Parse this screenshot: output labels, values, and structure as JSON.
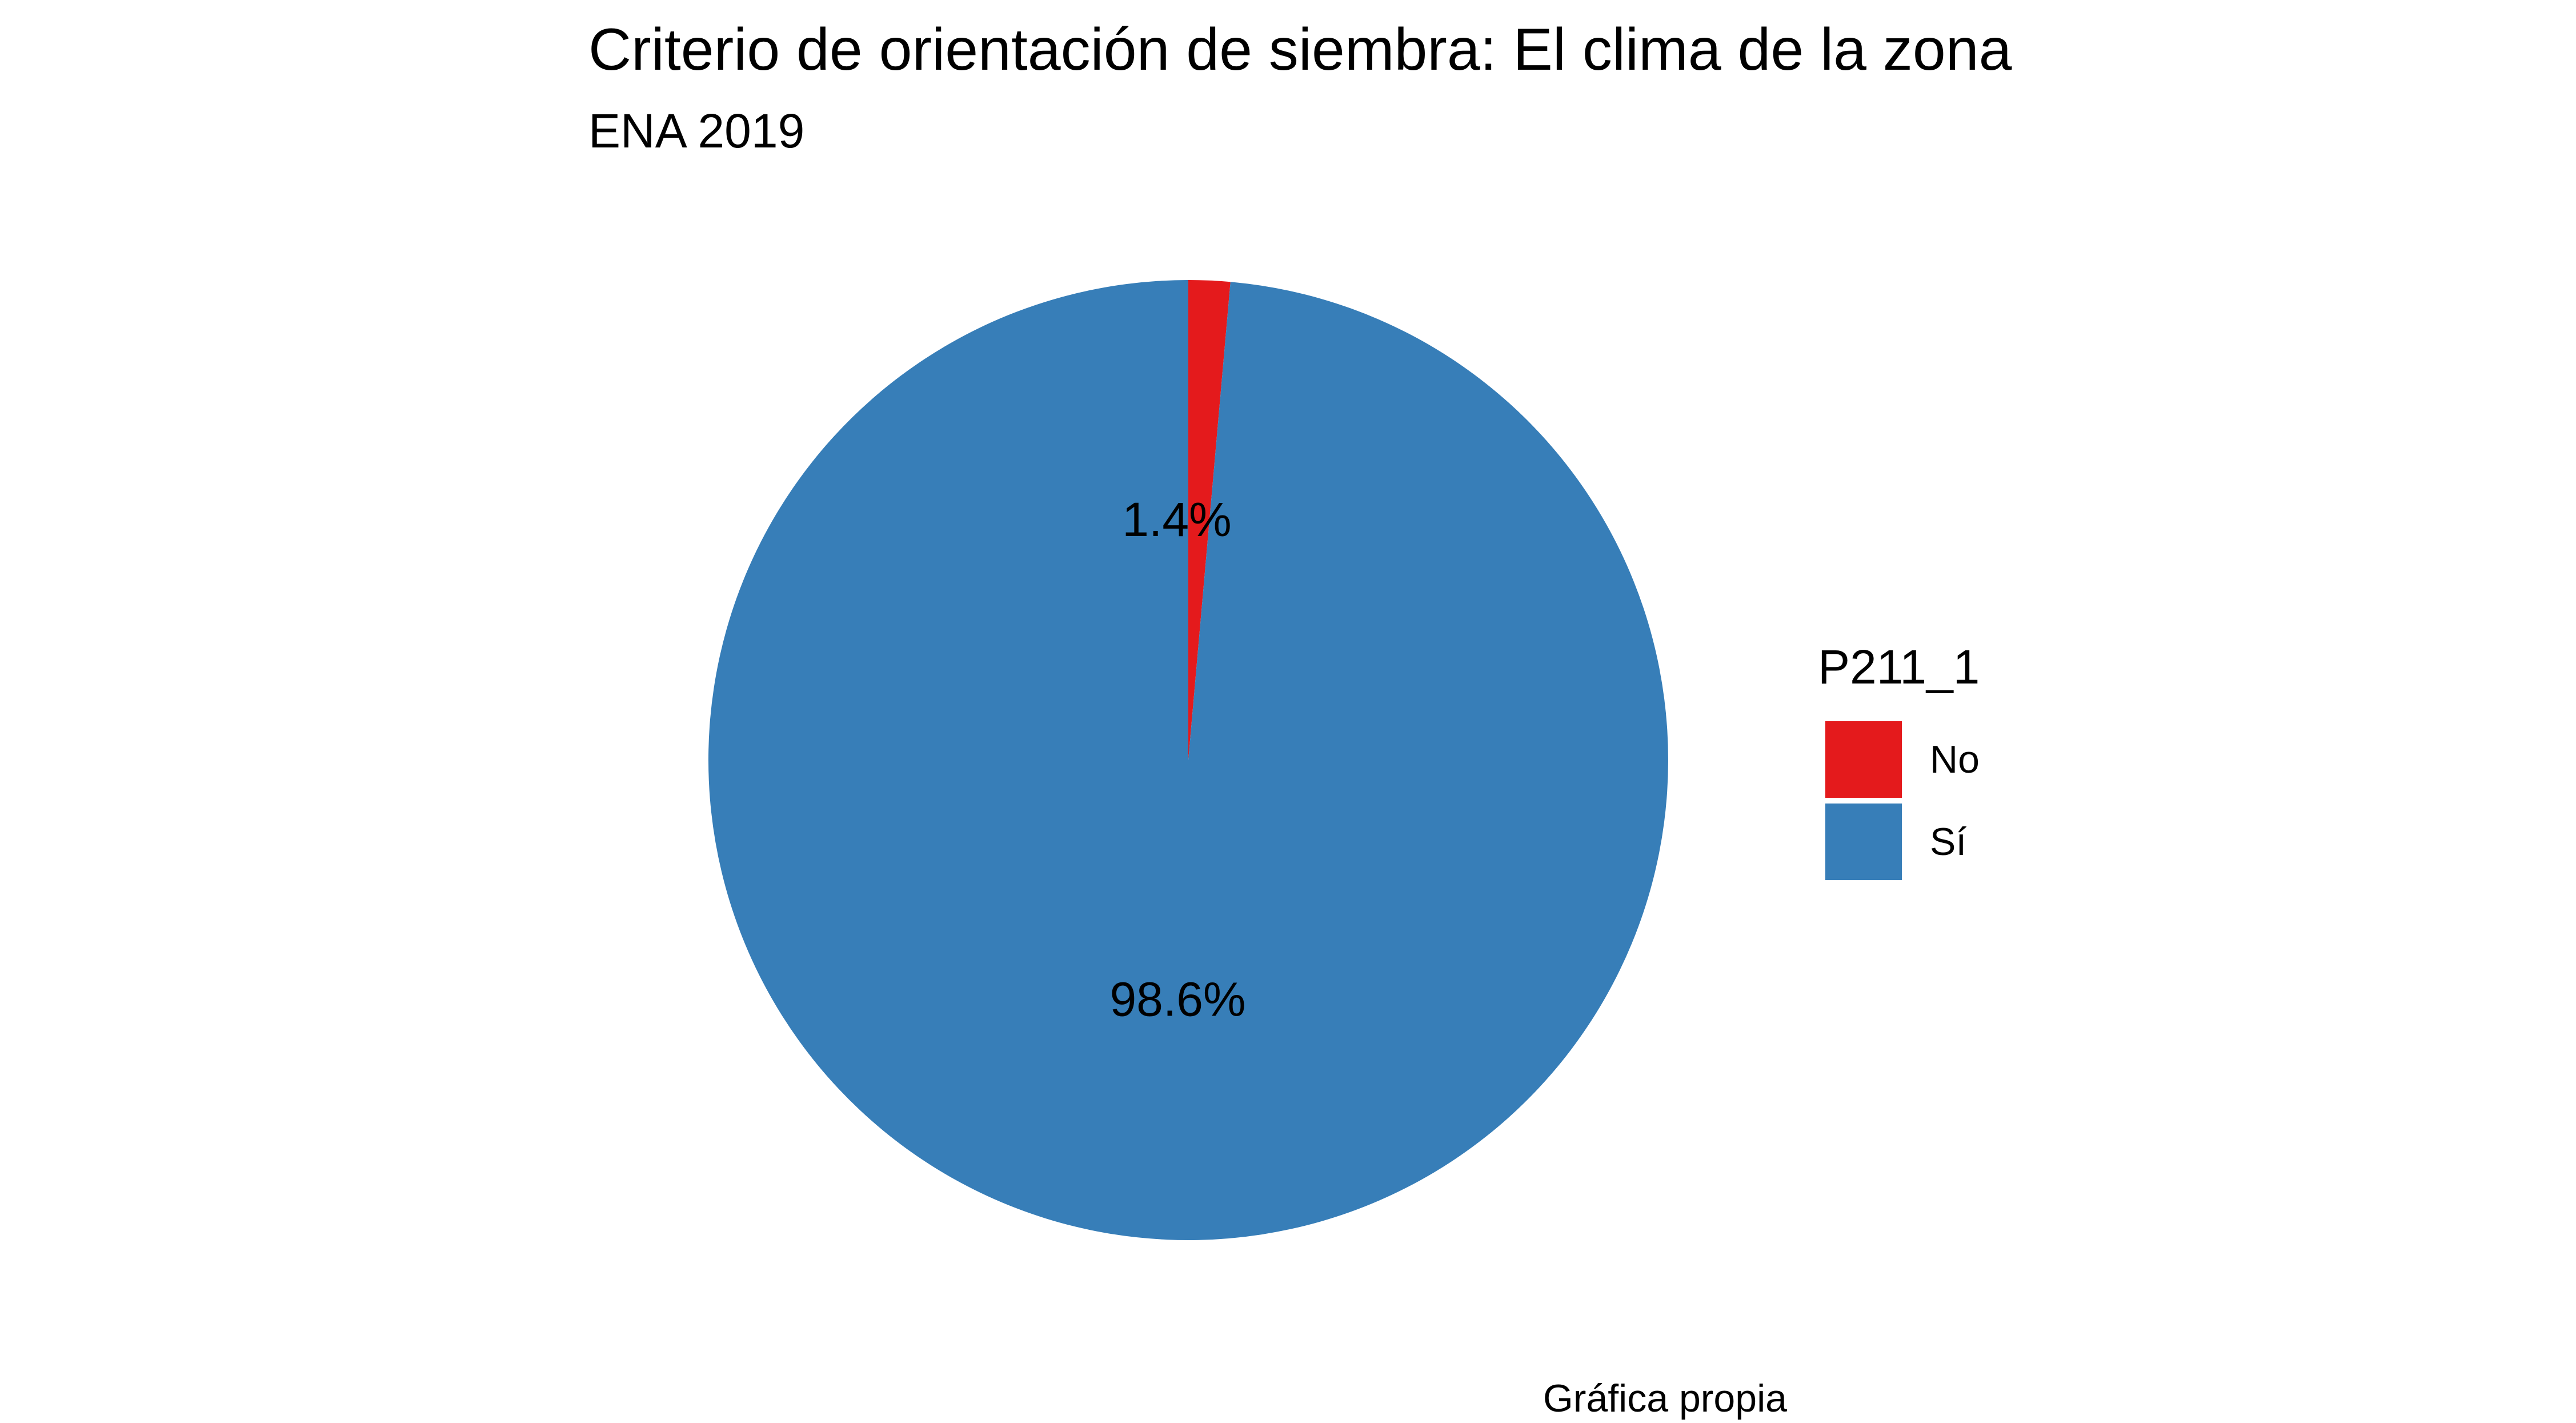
{
  "chart_data": {
    "type": "pie",
    "title": "Criterio de orientación de siembra: El clima de la zona",
    "subtitle": "ENA 2019",
    "caption": "Gráfica propia",
    "legend": {
      "title": "P211_1",
      "placement": "right"
    },
    "slices": [
      {
        "label": "No",
        "value": 1.4,
        "display": "1.4%",
        "color": "#E41A1C"
      },
      {
        "label": "Sí",
        "value": 98.6,
        "display": "98.6%",
        "color": "#377EB8"
      }
    ]
  }
}
